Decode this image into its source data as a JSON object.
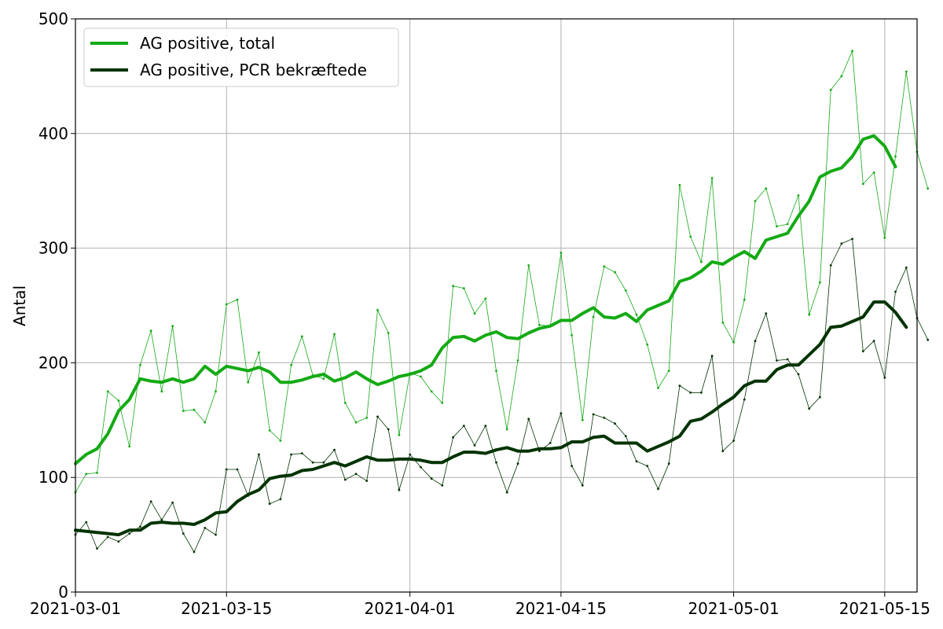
{
  "chart_data": {
    "type": "line",
    "title": "",
    "xlabel": "",
    "ylabel": "Antal",
    "xlim": [
      "2021-03-01",
      "2021-05-18"
    ],
    "ylim": [
      0,
      500
    ],
    "yticks": [
      0,
      100,
      200,
      300,
      400,
      500
    ],
    "xticks": [
      "2021-03-01",
      "2021-03-15",
      "2021-04-01",
      "2021-04-15",
      "2021-05-01",
      "2021-05-15"
    ],
    "grid": true,
    "legend_position": "top-left",
    "series": [
      {
        "name": "AG positive, total",
        "kind": "smoothed",
        "color": "#14aa14",
        "values": [
          112,
          120,
          125,
          138,
          158,
          168,
          186,
          184,
          183,
          186,
          183,
          186,
          197,
          190,
          197,
          195,
          193,
          196,
          192,
          183,
          183,
          185,
          188,
          190,
          184,
          187,
          192,
          186,
          181,
          184,
          188,
          190,
          193,
          198,
          213,
          222,
          223,
          219,
          224,
          227,
          222,
          221,
          226,
          230,
          232,
          237,
          237,
          243,
          248,
          240,
          239,
          243,
          236,
          246,
          250,
          254,
          271,
          274,
          280,
          288,
          286,
          292,
          297,
          291,
          307,
          310,
          313,
          328,
          341,
          362,
          367,
          370,
          380,
          395,
          398,
          389,
          371
        ]
      },
      {
        "name": "AG positive, PCR bekræftede",
        "kind": "smoothed",
        "color": "#003300",
        "values": [
          54,
          53,
          52,
          51,
          50,
          54,
          54,
          60,
          61,
          60,
          60,
          59,
          63,
          69,
          70,
          79,
          85,
          89,
          99,
          101,
          102,
          106,
          107,
          110,
          113,
          110,
          114,
          118,
          115,
          115,
          116,
          116,
          115,
          113,
          113,
          118,
          122,
          122,
          121,
          124,
          126,
          123,
          123,
          125,
          125,
          126,
          131,
          131,
          135,
          136,
          130,
          130,
          130,
          123,
          127,
          131,
          136,
          149,
          151,
          157,
          164,
          170,
          180,
          184,
          184,
          194,
          198,
          198,
          207,
          216,
          231,
          232,
          236,
          240,
          253,
          253,
          244,
          231
        ]
      },
      {
        "name": "",
        "kind": "daily",
        "color": "#14aa14",
        "values": [
          87,
          103,
          104,
          175,
          167,
          127,
          198,
          228,
          175,
          232,
          158,
          159,
          148,
          175,
          251,
          255,
          183,
          209,
          141,
          132,
          198,
          223,
          189,
          186,
          225,
          165,
          148,
          152,
          246,
          226,
          137,
          191,
          188,
          175,
          165,
          267,
          265,
          243,
          256,
          193,
          142,
          202,
          285,
          233,
          232,
          296,
          224,
          150,
          240,
          284,
          279,
          263,
          242,
          216,
          178,
          193,
          355,
          310,
          288,
          361,
          235,
          218,
          255,
          341,
          352,
          319,
          321,
          346,
          242,
          270,
          438,
          450,
          472,
          356,
          366,
          309,
          380,
          454,
          384,
          352
        ]
      },
      {
        "name": "",
        "kind": "daily",
        "color": "#003300",
        "values": [
          50,
          61,
          38,
          48,
          44,
          51,
          57,
          79,
          63,
          78,
          51,
          35,
          56,
          50,
          107,
          107,
          84,
          120,
          77,
          81,
          120,
          121,
          113,
          113,
          124,
          98,
          103,
          97,
          153,
          142,
          89,
          120,
          109,
          99,
          93,
          135,
          145,
          128,
          145,
          113,
          87,
          112,
          151,
          123,
          130,
          156,
          110,
          93,
          155,
          152,
          147,
          136,
          114,
          110,
          90,
          112,
          180,
          174,
          174,
          206,
          123,
          132,
          168,
          219,
          243,
          202,
          203,
          190,
          160,
          170,
          285,
          304,
          308,
          210,
          219,
          187,
          262,
          283,
          239,
          220
        ]
      }
    ]
  }
}
